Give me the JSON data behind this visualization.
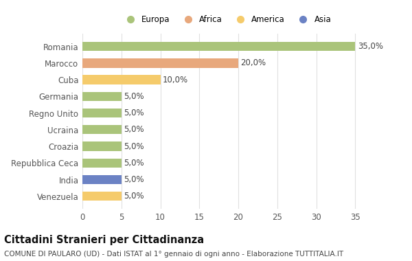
{
  "categories": [
    "Venezuela",
    "India",
    "Repubblica Ceca",
    "Croazia",
    "Ucraina",
    "Regno Unito",
    "Germania",
    "Cuba",
    "Marocco",
    "Romania"
  ],
  "values": [
    5.0,
    5.0,
    5.0,
    5.0,
    5.0,
    5.0,
    5.0,
    10.0,
    20.0,
    35.0
  ],
  "colors": [
    "#f5cb6b",
    "#6b82c4",
    "#aac47a",
    "#aac47a",
    "#aac47a",
    "#aac47a",
    "#aac47a",
    "#f5cb6b",
    "#e8a87c",
    "#aac47a"
  ],
  "legend_items": [
    {
      "label": "Europa",
      "color": "#aac47a"
    },
    {
      "label": "Africa",
      "color": "#e8a87c"
    },
    {
      "label": "America",
      "color": "#f5cb6b"
    },
    {
      "label": "Asia",
      "color": "#6b82c4"
    }
  ],
  "title": "Cittadini Stranieri per Cittadinanza",
  "subtitle": "COMUNE DI PAULARO (UD) - Dati ISTAT al 1° gennaio di ogni anno - Elaborazione TUTTITALIA.IT",
  "xlim": [
    0,
    37
  ],
  "xticks": [
    0,
    5,
    10,
    15,
    20,
    25,
    30,
    35
  ],
  "background_color": "#ffffff",
  "grid_color": "#e0e0e0",
  "label_fontsize": 8.5,
  "title_fontsize": 10.5,
  "subtitle_fontsize": 7.5,
  "bar_height": 0.55
}
